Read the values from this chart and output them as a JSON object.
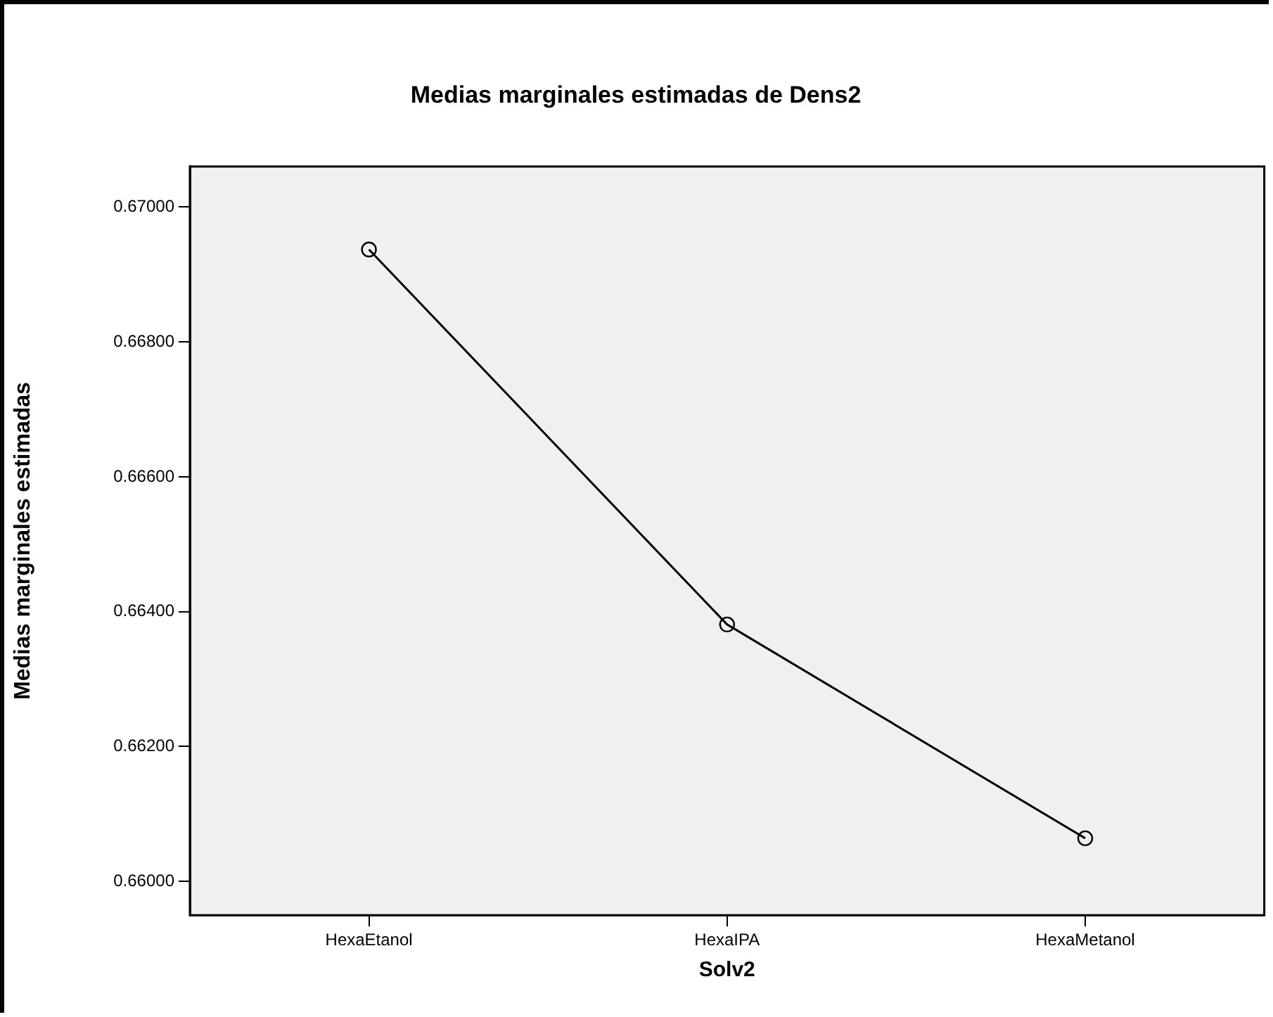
{
  "chart_data": {
    "type": "line",
    "title": "Medias marginales estimadas de Dens2",
    "xlabel": "Solv2",
    "ylabel": "Medias marginales estimadas",
    "categories": [
      "HexaEtanol",
      "HexaIPA",
      "HexaMetanol"
    ],
    "series": [
      {
        "color": "#000000",
        "values": [
          0.66937,
          0.66381,
          0.66064
        ]
      }
    ],
    "ylim": [
      0.6595,
      0.6706
    ],
    "yticks": [
      {
        "value": 0.66,
        "label": "0.66000"
      },
      {
        "value": 0.662,
        "label": "0.66200"
      },
      {
        "value": 0.664,
        "label": "0.66400"
      },
      {
        "value": 0.666,
        "label": "0.66600"
      },
      {
        "value": 0.668,
        "label": "0.66800"
      },
      {
        "value": 0.67,
        "label": "0.67000"
      }
    ],
    "grid": false,
    "legend": false,
    "marker": "circle",
    "line_style": "solid"
  }
}
